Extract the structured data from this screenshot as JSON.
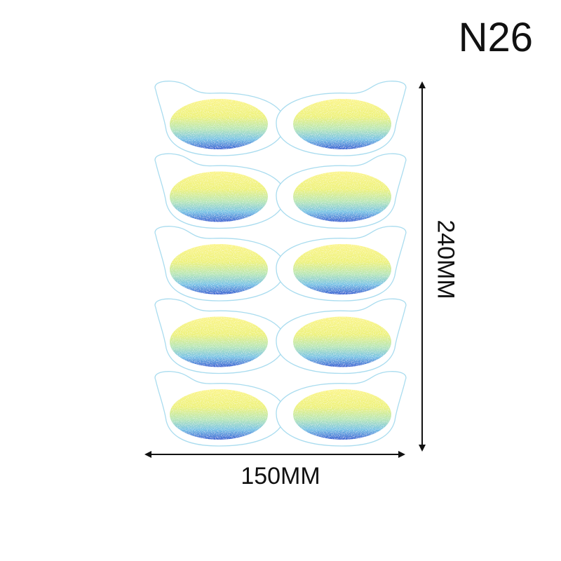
{
  "product_code": "N26",
  "dimensions": {
    "width_label": "150MM",
    "height_label": "240MM"
  },
  "sheet": {
    "rows": 5,
    "columns": 2
  },
  "colors": {
    "outline": "#a9dcef",
    "glitter_top": "#f7f27a",
    "glitter_mid": "#a6e3b0",
    "glitter_bottom": "#3f6fd6",
    "arrow": "#111111"
  }
}
